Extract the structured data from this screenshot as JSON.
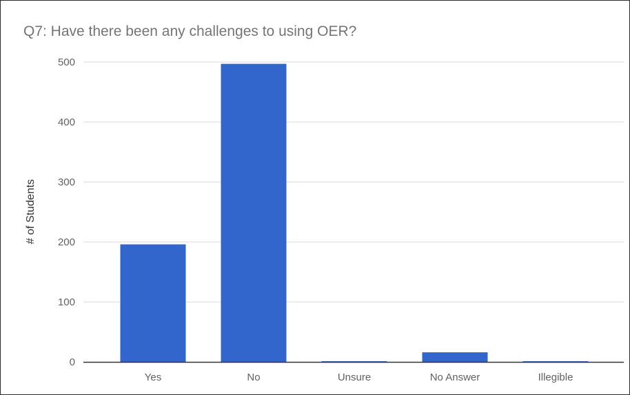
{
  "chart_data": {
    "type": "bar",
    "title": "Q7:  Have there been any challenges to using OER?",
    "xlabel": "",
    "ylabel": "# of Students",
    "categories": [
      "Yes",
      "No",
      "Unsure",
      "No Answer",
      "Illegible"
    ],
    "values": [
      196,
      497,
      1,
      16,
      1
    ],
    "ylim": [
      0,
      500
    ],
    "yticks": [
      0,
      100,
      200,
      300,
      400,
      500
    ],
    "grid": true,
    "legend": "none",
    "bar_color": "#3366cc"
  }
}
